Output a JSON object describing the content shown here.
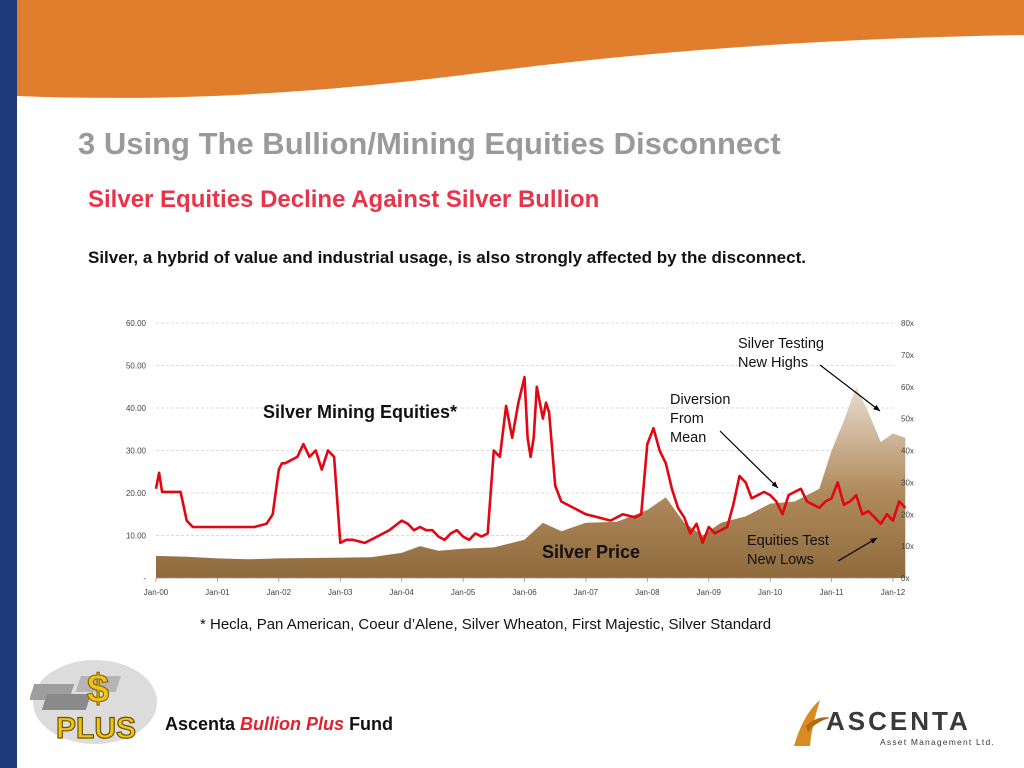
{
  "slide": {
    "title": "3  Using The Bullion/Mining Equities Disconnect",
    "subtitle": "Silver Equities Decline Against Silver Bullion",
    "description": "Silver, a hybrid of value and industrial usage, is also strongly affected by the disconnect.",
    "footnote": "* Hecla, Pan American, Coeur d’Alene, Silver Wheaton, First Majestic, Silver Standard",
    "colors": {
      "sidebar": "#1f3a78",
      "wave": "#e07e2e",
      "title": "#9a9a9a",
      "subtitle": "#e8344a",
      "equities_line": "#e30613",
      "silver_area": "#a88250"
    }
  },
  "branding": {
    "fund_name_prefix": "Ascenta ",
    "fund_name_accent": "Bullion Plus",
    "fund_name_suffix": " Fund",
    "logo_left_dollar": "$",
    "logo_left_text": "PLUS",
    "logo_right_name": "ASCENTA",
    "logo_right_tagline": "Asset Management Ltd."
  },
  "chart_data": {
    "type": "line",
    "x_tick_labels": [
      "Jan-00",
      "Jan-01",
      "Jan-02",
      "Jan-03",
      "Jan-04",
      "Jan-05",
      "Jan-06",
      "Jan-07",
      "Jan-08",
      "Jan-09",
      "Jan-10",
      "Jan-11",
      "Jan-12"
    ],
    "y_left_tick_labels": [
      "-",
      "10.00",
      "20.00",
      "30.00",
      "40.00",
      "50.00",
      "60.00"
    ],
    "y_right_tick_labels": [
      "0x",
      "10x",
      "20x",
      "30x",
      "40x",
      "50x",
      "60x",
      "70x",
      "80x"
    ],
    "ylim_left": [
      0,
      60
    ],
    "ylim_right": [
      0,
      80
    ],
    "grid": true,
    "series": [
      {
        "name": "Silver Mining Equities*",
        "axis": "right",
        "color": "#e30613",
        "style": "line",
        "x": [
          2000.0,
          2000.05,
          2000.1,
          2000.2,
          2000.3,
          2000.4,
          2000.5,
          2000.6,
          2000.7,
          2000.8,
          2000.9,
          2001.0,
          2001.2,
          2001.4,
          2001.6,
          2001.8,
          2001.9,
          2002.0,
          2002.05,
          2002.1,
          2002.2,
          2002.3,
          2002.4,
          2002.5,
          2002.6,
          2002.7,
          2002.8,
          2002.9,
          2003.0,
          2003.1,
          2003.2,
          2003.4,
          2003.6,
          2003.8,
          2004.0,
          2004.1,
          2004.2,
          2004.3,
          2004.4,
          2004.5,
          2004.6,
          2004.7,
          2004.8,
          2004.9,
          2005.0,
          2005.1,
          2005.2,
          2005.3,
          2005.4,
          2005.5,
          2005.6,
          2005.7,
          2005.8,
          2005.9,
          2006.0,
          2006.05,
          2006.1,
          2006.15,
          2006.2,
          2006.3,
          2006.35,
          2006.4,
          2006.5,
          2006.6,
          2006.8,
          2007.0,
          2007.2,
          2007.4,
          2007.6,
          2007.8,
          2007.9,
          2008.0,
          2008.1,
          2008.2,
          2008.3,
          2008.4,
          2008.5,
          2008.6,
          2008.7,
          2008.8,
          2008.9,
          2009.0,
          2009.1,
          2009.2,
          2009.3,
          2009.4,
          2009.5,
          2009.6,
          2009.7,
          2009.8,
          2009.9,
          2010.0,
          2010.1,
          2010.2,
          2010.3,
          2010.4,
          2010.5,
          2010.6,
          2010.7,
          2010.8,
          2010.9,
          2011.0,
          2011.1,
          2011.2,
          2011.3,
          2011.4,
          2011.5,
          2011.6,
          2011.7,
          2011.8,
          2011.9,
          2012.0,
          2012.1,
          2012.2
        ],
        "values": [
          28,
          33,
          27,
          27,
          27,
          27,
          18,
          16,
          16,
          16,
          16,
          16,
          16,
          16,
          16,
          17,
          20,
          34,
          36,
          36,
          37,
          38,
          42,
          38,
          40,
          34,
          40,
          38,
          11,
          12,
          12,
          11,
          13,
          15,
          18,
          17,
          15,
          16,
          15,
          15,
          13,
          12,
          14,
          15,
          13,
          12,
          14,
          13,
          14,
          40,
          38,
          54,
          44,
          55,
          63,
          44,
          38,
          44,
          60,
          50,
          55,
          52,
          29,
          24,
          22,
          20,
          19,
          18,
          20,
          19,
          20,
          42,
          47,
          40,
          36,
          28,
          22,
          19,
          14,
          17,
          11,
          16,
          14,
          15,
          16,
          23,
          32,
          30,
          25,
          26,
          27,
          26,
          24,
          20,
          26,
          27,
          28,
          24,
          23,
          22,
          24,
          25,
          30,
          23,
          24,
          26,
          20,
          21,
          19,
          17,
          20,
          18,
          24,
          22
        ]
      },
      {
        "name": "Silver Price",
        "axis": "left",
        "color": "#a88250",
        "style": "area",
        "x": [
          2000.0,
          2000.5,
          2001.0,
          2001.5,
          2002.0,
          2002.5,
          2003.0,
          2003.5,
          2004.0,
          2004.3,
          2004.6,
          2005.0,
          2005.5,
          2006.0,
          2006.3,
          2006.6,
          2007.0,
          2007.5,
          2008.0,
          2008.3,
          2008.6,
          2008.9,
          2009.2,
          2009.6,
          2010.0,
          2010.4,
          2010.8,
          2011.0,
          2011.2,
          2011.4,
          2011.6,
          2011.8,
          2012.0,
          2012.2
        ],
        "values": [
          5.2,
          5.0,
          4.6,
          4.4,
          4.6,
          4.7,
          4.8,
          4.9,
          5.9,
          7.5,
          6.4,
          6.9,
          7.2,
          9.0,
          13.0,
          11.0,
          13.0,
          13.2,
          16.0,
          19.0,
          13.0,
          10.0,
          13.0,
          14.5,
          17.5,
          18.0,
          21.0,
          30.0,
          37.0,
          45.0,
          39.0,
          32.0,
          34.0,
          33.0
        ]
      }
    ],
    "annotations": [
      {
        "text_lines": [
          "Silver Testing",
          "New Highs"
        ]
      },
      {
        "text_lines": [
          "Diversion",
          "From",
          "Mean"
        ]
      },
      {
        "text_lines": [
          "Equities Test",
          "New Lows"
        ]
      }
    ],
    "inline_labels": {
      "equities": "Silver Mining Equities*",
      "silver": "Silver Price"
    }
  }
}
